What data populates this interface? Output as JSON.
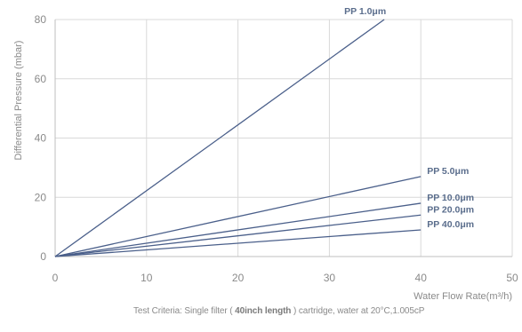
{
  "chart_data": {
    "type": "line",
    "title": "",
    "xlabel": "Water Flow Rate(m³/h)",
    "ylabel": "Differential Pressure (mbar)",
    "xlim": [
      0,
      50
    ],
    "ylim": [
      0,
      80
    ],
    "x_ticks": [
      0,
      10,
      20,
      30,
      40,
      50
    ],
    "y_ticks": [
      0,
      20,
      40,
      60,
      80
    ],
    "grid": true,
    "line_color": "#4a5f8a",
    "series": [
      {
        "name": "PP 1.0μm",
        "x": [
          0,
          36
        ],
        "y": [
          0,
          80
        ]
      },
      {
        "name": "PP 5.0μm",
        "x": [
          0,
          40
        ],
        "y": [
          0,
          27
        ]
      },
      {
        "name": "PP 10.0μm",
        "x": [
          0,
          40
        ],
        "y": [
          0,
          18
        ]
      },
      {
        "name": "PP 20.0μm",
        "x": [
          0,
          40
        ],
        "y": [
          0,
          14
        ]
      },
      {
        "name": "PP 40.0μm",
        "x": [
          0,
          40
        ],
        "y": [
          0,
          9
        ]
      }
    ]
  },
  "footer": {
    "criteria_prefix": "Test Criteria: Single filter ( ",
    "criteria_bold": "40inch length",
    "criteria_suffix": " ) cartridge, water at 20°C,1.005cP"
  }
}
